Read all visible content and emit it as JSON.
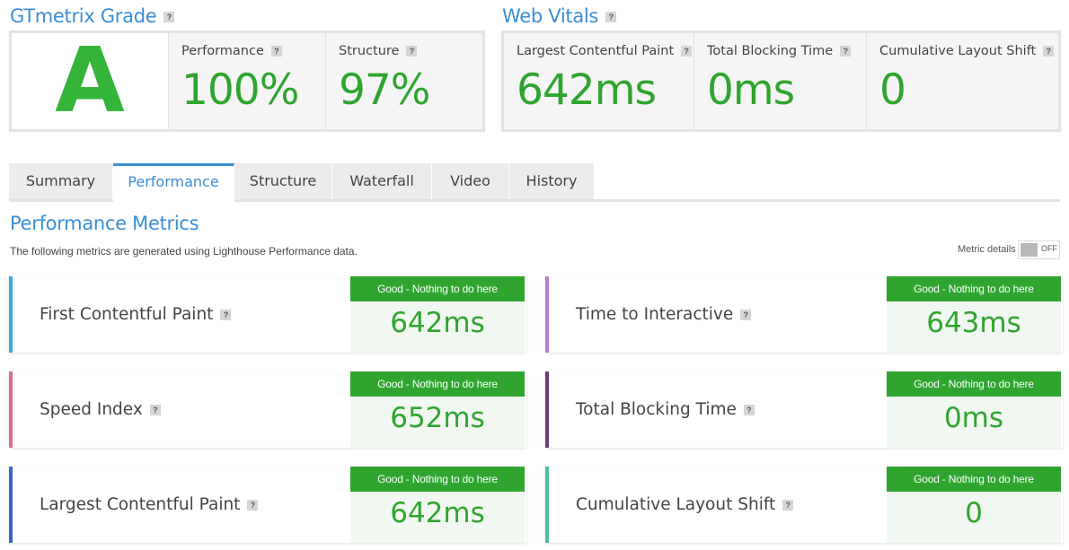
{
  "grade": {
    "title": "GTmetrix Grade",
    "help": "?",
    "letter": "A",
    "performance": {
      "label": "Performance",
      "value": "100%"
    },
    "structure": {
      "label": "Structure",
      "value": "97%"
    }
  },
  "vitals": {
    "title": "Web Vitals",
    "help": "?",
    "lcp": {
      "label": "Largest Contentful Paint",
      "value": "642ms"
    },
    "tbt": {
      "label": "Total Blocking Time",
      "value": "0ms"
    },
    "cls": {
      "label": "Cumulative Layout Shift",
      "value": "0"
    }
  },
  "tabs": [
    {
      "label": "Summary"
    },
    {
      "label": "Performance"
    },
    {
      "label": "Structure"
    },
    {
      "label": "Waterfall"
    },
    {
      "label": "Video"
    },
    {
      "label": "History"
    }
  ],
  "active_tab": "Performance",
  "metrics_section": {
    "title": "Performance Metrics",
    "description": "The following metrics are generated using Lighthouse Performance data.",
    "toggle_label": "Metric details",
    "toggle_state": "OFF"
  },
  "metrics": [
    {
      "name": "First Contentful Paint",
      "status": "Good - Nothing to do here",
      "value": "642ms",
      "color": "#3ba9e0"
    },
    {
      "name": "Time to Interactive",
      "status": "Good - Nothing to do here",
      "value": "643ms",
      "color": "#b77ed0"
    },
    {
      "name": "Speed Index",
      "status": "Good - Nothing to do here",
      "value": "652ms",
      "color": "#e06a9a"
    },
    {
      "name": "Total Blocking Time",
      "status": "Good - Nothing to do here",
      "value": "0ms",
      "color": "#6a3d7f"
    },
    {
      "name": "Largest Contentful Paint",
      "status": "Good - Nothing to do here",
      "value": "642ms",
      "color": "#3b63c9"
    },
    {
      "name": "Cumulative Layout Shift",
      "status": "Good - Nothing to do here",
      "value": "0",
      "color": "#4cbf93"
    }
  ],
  "colors": {
    "accent": "#3a8ed4",
    "good": "#2fa52f"
  }
}
